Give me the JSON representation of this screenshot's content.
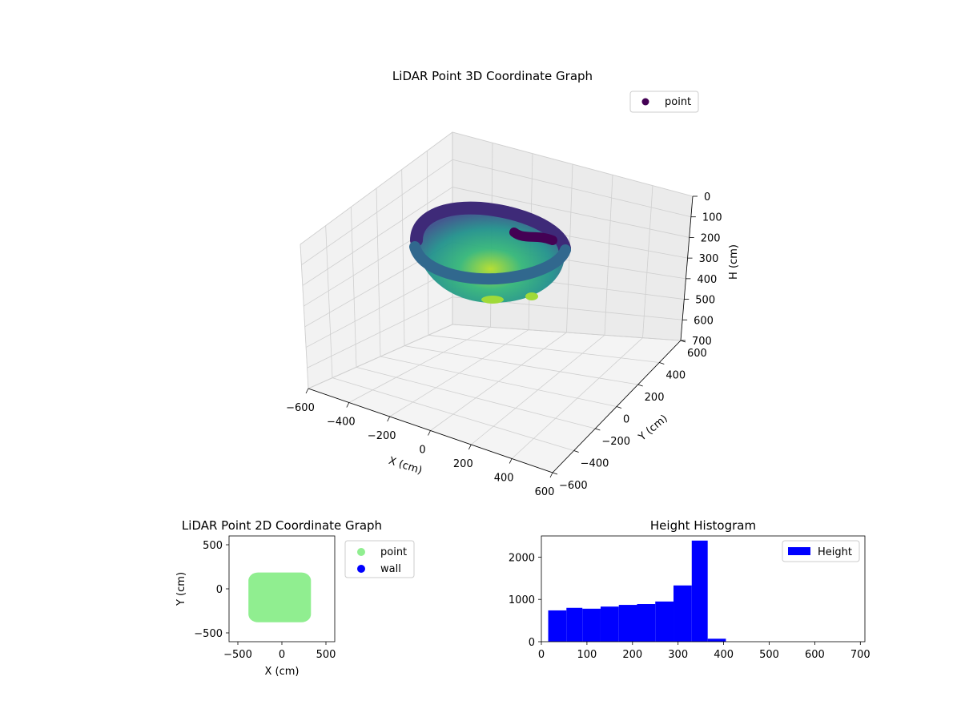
{
  "chart_data": [
    {
      "type": "scatter3d",
      "title": "LiDAR Point 3D Coordinate Graph",
      "xlabel": "X (cm)",
      "ylabel": "Y (cm)",
      "zlabel": "H (cm)",
      "xlim": [
        -600,
        600
      ],
      "ylim": [
        -600,
        600
      ],
      "zlim": [
        0,
        700
      ],
      "z_inverted": true,
      "xticks": [
        "−600",
        "−400",
        "−200",
        "0",
        "200",
        "400",
        "600"
      ],
      "yticks": [
        "−600",
        "−400",
        "−200",
        "0",
        "200",
        "400",
        "600"
      ],
      "zticks": [
        "0",
        "100",
        "200",
        "300",
        "400",
        "500",
        "600",
        "700"
      ],
      "legend": {
        "label": "point",
        "position": "top-right"
      },
      "colormap": "viridis",
      "grid": true
    },
    {
      "type": "scatter",
      "title": "LiDAR Point 2D Coordinate Graph",
      "xlabel": "X (cm)",
      "ylabel": "Y (cm)",
      "xlim": [
        -600,
        600
      ],
      "ylim": [
        -600,
        600
      ],
      "xticks": [
        "−500",
        "0",
        "500"
      ],
      "yticks": [
        "−500",
        "0",
        "500"
      ],
      "legend": [
        {
          "label": "point",
          "color": "#90ee90"
        },
        {
          "label": "wall",
          "color": "#0000ff"
        }
      ],
      "legend_position": "outside-right",
      "region": {
        "series": "point",
        "approx_extent_x": [
          -380,
          330
        ],
        "approx_extent_y": [
          -380,
          185
        ]
      }
    },
    {
      "type": "bar",
      "title": "Height Histogram",
      "series_name": "Height",
      "color": "#0000ff",
      "xlim": [
        0,
        710
      ],
      "ylim": [
        0,
        2500
      ],
      "xticks": [
        "0",
        "100",
        "200",
        "300",
        "400",
        "500",
        "600",
        "700"
      ],
      "yticks": [
        "0",
        "1000",
        "2000"
      ],
      "legend_position": "top-right",
      "bins": [
        {
          "start": 15,
          "end": 55,
          "count": 740
        },
        {
          "start": 55,
          "end": 90,
          "count": 800
        },
        {
          "start": 90,
          "end": 130,
          "count": 780
        },
        {
          "start": 130,
          "end": 170,
          "count": 830
        },
        {
          "start": 170,
          "end": 210,
          "count": 870
        },
        {
          "start": 210,
          "end": 250,
          "count": 890
        },
        {
          "start": 250,
          "end": 290,
          "count": 950
        },
        {
          "start": 290,
          "end": 330,
          "count": 1330
        },
        {
          "start": 330,
          "end": 365,
          "count": 2390
        },
        {
          "start": 365,
          "end": 405,
          "count": 70
        }
      ]
    }
  ]
}
